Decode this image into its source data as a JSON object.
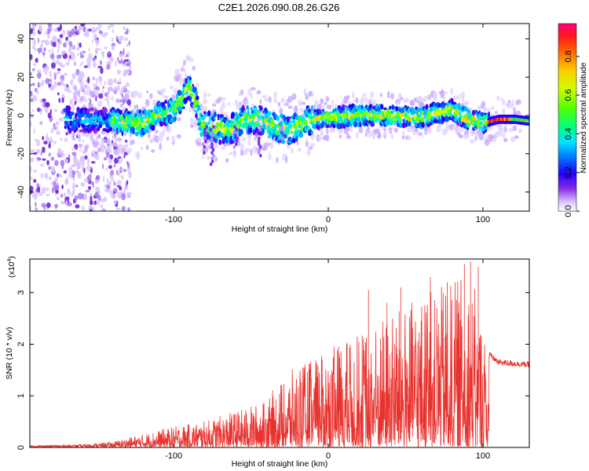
{
  "figure": {
    "title": "C2E1.2026.090.08.26.G26"
  },
  "chart_data": [
    {
      "type": "heatmap",
      "title": "C2E1.2026.090.08.26.G26",
      "xlabel": "Height of straight line (km)",
      "ylabel": "Frequency (Hz)",
      "xlim": [
        -193,
        130
      ],
      "ylim": [
        -50,
        48
      ],
      "xticks": [
        -100,
        0,
        100
      ],
      "yticks": [
        -40,
        -20,
        0,
        20,
        40
      ],
      "colorbar": {
        "label": "Normalized spectral amplitude",
        "range": [
          0,
          0.97
        ],
        "ticks": [
          "0.0",
          "0.2",
          "0.4",
          "0.6",
          "0.8"
        ]
      },
      "ridge": {
        "description_values": "centre frequency (Hz) of the strong band vs height (km)",
        "x": [
          -165,
          -140,
          -120,
          -110,
          -100,
          -95,
          -90,
          -85,
          -82,
          -75,
          -65,
          -55,
          -45,
          -35,
          -25,
          -20,
          -10,
          0,
          20,
          40,
          60,
          70,
          80,
          90,
          100,
          110,
          120,
          130
        ],
        "y": [
          -2,
          -3,
          -4,
          0,
          3,
          8,
          15,
          5,
          -5,
          -6,
          -8,
          -3,
          -2,
          -6,
          -8,
          -5,
          -2,
          -1,
          0,
          0,
          -1,
          1,
          3,
          -2,
          -4,
          -2,
          -2,
          -3
        ]
      }
    },
    {
      "type": "line",
      "title": "",
      "xlabel": "Height of straight line (km)",
      "ylabel": "SNR (10 * v/v)",
      "scale_label": "(x10",
      "scale_exp": "4",
      "xlim": [
        -193,
        130
      ],
      "ylim": [
        0,
        3.65
      ],
      "xticks": [
        -100,
        0,
        100
      ],
      "yticks": [
        0,
        1,
        2,
        3
      ],
      "series": [
        {
          "name": "SNR",
          "color": "#e8322e",
          "envelope_x": [
            -193,
            -160,
            -140,
            -120,
            -100,
            -80,
            -60,
            -40,
            -30,
            -20,
            -10,
            0,
            20,
            40,
            60,
            80,
            90,
            100,
            104,
            110,
            130
          ],
          "envelope_y": [
            0.03,
            0.05,
            0.1,
            0.25,
            0.4,
            0.5,
            0.7,
            0.9,
            1.3,
            1.6,
            1.7,
            1.9,
            2.2,
            2.6,
            2.9,
            3.2,
            3.4,
            2.4,
            1.8,
            1.65,
            1.6
          ],
          "peak_markers": [
            {
              "x": 92,
              "y": 3.6
            },
            {
              "x": 88,
              "y": 3.55
            },
            {
              "x": 66,
              "y": 3.3
            },
            {
              "x": 26,
              "y": 3.05
            },
            {
              "x": 47,
              "y": 3.1
            },
            {
              "x": 77,
              "y": 3.2
            },
            {
              "x": 97,
              "y": 3.5
            },
            {
              "x": 38,
              "y": 2.8
            }
          ]
        }
      ]
    }
  ]
}
